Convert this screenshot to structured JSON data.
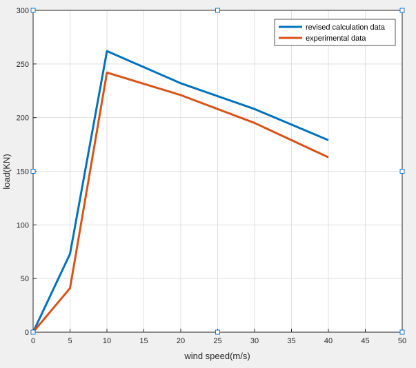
{
  "chart_data": {
    "type": "line",
    "title": "",
    "xlabel": "wind speed(m/s)",
    "ylabel": "load(KN)",
    "xlim": [
      0,
      50
    ],
    "ylim": [
      0,
      300
    ],
    "xticks": [
      0,
      5,
      10,
      15,
      20,
      25,
      30,
      35,
      40,
      45,
      50
    ],
    "yticks": [
      0,
      50,
      100,
      150,
      200,
      250,
      300
    ],
    "grid": true,
    "legend_position": "top-right",
    "series": [
      {
        "name": "revised calculation data",
        "color": "#0072bd",
        "x": [
          0,
          5,
          10,
          20,
          30,
          40
        ],
        "y": [
          0,
          73,
          262,
          232,
          208,
          179
        ]
      },
      {
        "name": "experimental data",
        "color": "#d95319",
        "x": [
          0,
          5,
          10,
          20,
          30,
          40
        ],
        "y": [
          0,
          41,
          242,
          221,
          195,
          163
        ]
      }
    ]
  }
}
